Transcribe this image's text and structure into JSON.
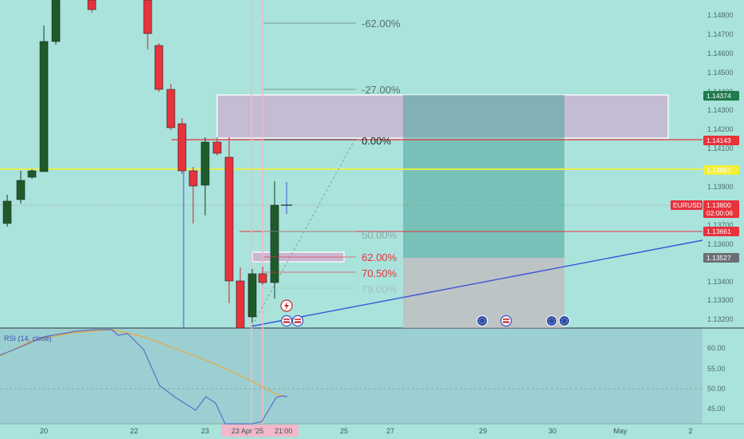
{
  "colors": {
    "background": "#a9e3dc",
    "bull_candle": "#1f5a2b",
    "bear_candle": "#e8323c",
    "resistance": "#e8323c",
    "support_yellow": "#f2ef3a",
    "trendline": "#3e55d6",
    "rsi_line": "#5b6fc9",
    "rsi_ma": "#e9a93a",
    "current_price_tag": "#e8323c",
    "target_tag": "#1f7a4d"
  },
  "chart": {
    "symbol": "EURUSD",
    "last_price": "1.13800",
    "countdown": "02:00:06",
    "price_axis": [
      "1.14800",
      "1.14700",
      "1.14600",
      "1.14500",
      "1.14400",
      "1.14300",
      "1.14200",
      "1.14100",
      "1.13900",
      "1.13700",
      "1.13600",
      "1.13400",
      "1.13300",
      "1.13200"
    ],
    "price_tags": [
      {
        "value": "1.14374",
        "kind": "target"
      },
      {
        "value": "1.14143",
        "kind": "resistance"
      },
      {
        "value": "1.13987",
        "kind": "support"
      },
      {
        "value": "1.13661",
        "kind": "resistance"
      },
      {
        "value": "1.13527",
        "kind": "neutral"
      }
    ],
    "fib_levels": [
      {
        "label": "-62.00%",
        "color": "#5e6e70"
      },
      {
        "label": "-27.00%",
        "color": "#5e6e70"
      },
      {
        "label": "0.00%",
        "color": "#20262a"
      },
      {
        "label": "50.00%",
        "color": "#8aa9a6"
      },
      {
        "label": "62.00%",
        "color": "#e8323c"
      },
      {
        "label": "70.50%",
        "color": "#e8323c"
      },
      {
        "label": "79.00%",
        "color": "#a4c1be"
      }
    ],
    "time_axis": [
      "20",
      "22",
      "23",
      "23",
      "23 Apr '25",
      "21:00",
      "25",
      "27",
      "29",
      "30",
      "May",
      "2"
    ],
    "rsi_title": "RSI (14, close)",
    "rsi_axis": [
      "60.00",
      "55.00",
      "50.00",
      "45.00"
    ]
  }
}
